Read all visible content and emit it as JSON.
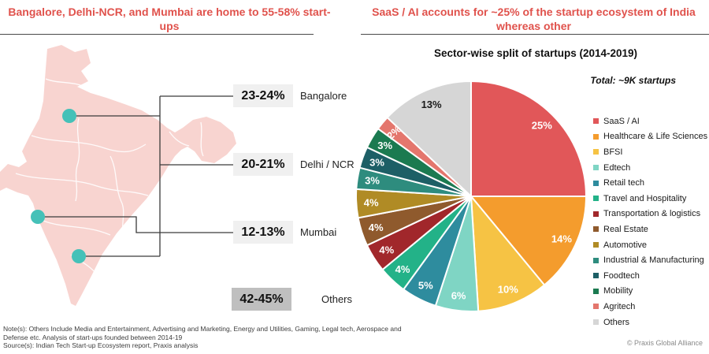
{
  "left_panel": {
    "title": "Bangalore, Delhi-NCR, and Mumbai are home to 55-58% start-ups",
    "callouts": [
      {
        "range": "23-24%",
        "city": "Bangalore"
      },
      {
        "range": "20-21%",
        "city": "Delhi / NCR"
      },
      {
        "range": "12-13%",
        "city": "Mumbai"
      },
      {
        "range": "42-45%",
        "city": "Others"
      }
    ]
  },
  "right_panel": {
    "title": "SaaS / AI accounts for ~25% of the startup ecosystem of India whereas other",
    "chart_title": "Sector-wise split of startups (2014-2019)",
    "total_label": "Total: ~9K startups"
  },
  "chart_data": {
    "type": "pie",
    "title": "Sector-wise split of startups (2014-2019)",
    "annotation": "Total: ~9K startups",
    "unit": "percent",
    "legend_position": "right",
    "start_angle_deg": 0,
    "direction": "clockwise",
    "slices": [
      {
        "label": "SaaS / AI",
        "value": 25,
        "color": "#E15759"
      },
      {
        "label": "Healthcare & Life Sciences",
        "value": 14,
        "color": "#F49C2D"
      },
      {
        "label": "BFSI",
        "value": 10,
        "color": "#F6C344"
      },
      {
        "label": "Edtech",
        "value": 6,
        "color": "#7FD5C4"
      },
      {
        "label": "Retail tech",
        "value": 5,
        "color": "#2E8C9E"
      },
      {
        "label": "Travel and Hospitality",
        "value": 4,
        "color": "#23B288"
      },
      {
        "label": "Transportation & logistics",
        "value": 4,
        "color": "#A1272B"
      },
      {
        "label": "Real Estate",
        "value": 4,
        "color": "#8F5A2D"
      },
      {
        "label": "Automotive",
        "value": 4,
        "color": "#B08B25"
      },
      {
        "label": "Industrial & Manufacturing",
        "value": 3,
        "color": "#2E8C7E"
      },
      {
        "label": "Foodtech",
        "value": 3,
        "color": "#1D5F66"
      },
      {
        "label": "Mobility",
        "value": 3,
        "color": "#1B7A50"
      },
      {
        "label": "Agritech",
        "value": 2,
        "color": "#E4766D"
      },
      {
        "label": "Others",
        "value": 13,
        "color": "#D6D6D6"
      }
    ]
  },
  "map": {
    "fill_color": "#F8D4D0",
    "dot_color": "#45C1B8",
    "dots": [
      "delhi-ncr",
      "mumbai",
      "bangalore"
    ]
  },
  "footer": {
    "note_line1": "Note(s): Others Include Media and Entertainment, Advertising and Marketing, Energy and Utilities, Gaming, Legal tech, Aerospace and",
    "note_line2": "Defense etc. Analysis of start-ups founded between 2014-19",
    "source_line": "Source(s): Indian Tech Start-up Ecosystem report, Praxis analysis",
    "copyright": "© Praxis Global Alliance"
  }
}
